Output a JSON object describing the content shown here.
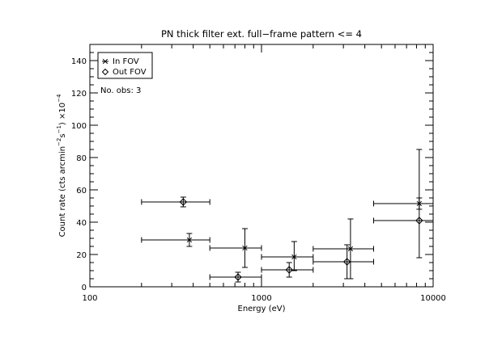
{
  "chart_data": {
    "type": "scatter",
    "title": "PN thick filter ext. full−frame pattern <= 4",
    "xlabel": "Energy (eV)",
    "ylabel_main": "Count rate (cts arcmin",
    "ylabel_sup1": "−2",
    "ylabel_mid": "s",
    "ylabel_sup2": "−1",
    "ylabel_end": ") ×10",
    "ylabel_sup3": "−4",
    "xscale": "log",
    "xlim": [
      100,
      10000
    ],
    "ylim": [
      0,
      150
    ],
    "x_ticks": [
      100,
      1000,
      10000
    ],
    "x_tick_labels": [
      "100",
      "1000",
      "10000"
    ],
    "y_ticks": [
      0,
      20,
      40,
      60,
      80,
      100,
      120,
      140
    ],
    "y_tick_labels": [
      "0",
      "20",
      "40",
      "60",
      "80",
      "100",
      "120",
      "140"
    ],
    "legend": {
      "position": "top-left",
      "entries": [
        {
          "marker": "asterisk",
          "label": "In FOV"
        },
        {
          "marker": "diamond",
          "label": "Out FOV"
        }
      ]
    },
    "annotation": "No. obs: 3",
    "series": [
      {
        "marker": "asterisk",
        "points": [
          {
            "x": 380,
            "xmin": 200,
            "xmax": 500,
            "y": 29,
            "ymin": 25,
            "ymax": 33
          },
          {
            "x": 800,
            "xmin": 500,
            "xmax": 1000,
            "y": 24,
            "ymin": 12,
            "ymax": 36
          },
          {
            "x": 1550,
            "xmin": 1000,
            "xmax": 2000,
            "y": 18.5,
            "ymin": 10,
            "ymax": 28
          },
          {
            "x": 3300,
            "xmin": 2000,
            "xmax": 4500,
            "y": 23.5,
            "ymin": 5,
            "ymax": 42
          },
          {
            "x": 8300,
            "xmin": 4500,
            "xmax": 10000,
            "y": 51.5,
            "ymin": 48,
            "ymax": 55
          }
        ]
      },
      {
        "marker": "diamond",
        "points": [
          {
            "x": 350,
            "xmin": 200,
            "xmax": 500,
            "y": 52.5,
            "ymin": 49.5,
            "ymax": 55.5
          },
          {
            "x": 730,
            "xmin": 500,
            "xmax": 1000,
            "y": 6,
            "ymin": 3,
            "ymax": 9
          },
          {
            "x": 1450,
            "xmin": 1000,
            "xmax": 2000,
            "y": 10.5,
            "ymin": 6,
            "ymax": 15
          },
          {
            "x": 3150,
            "xmin": 2000,
            "xmax": 4500,
            "y": 15.5,
            "ymin": 5,
            "ymax": 26
          },
          {
            "x": 8300,
            "xmin": 4500,
            "xmax": 10000,
            "y": 41,
            "ymin": 18,
            "ymax": 85
          }
        ]
      }
    ]
  }
}
